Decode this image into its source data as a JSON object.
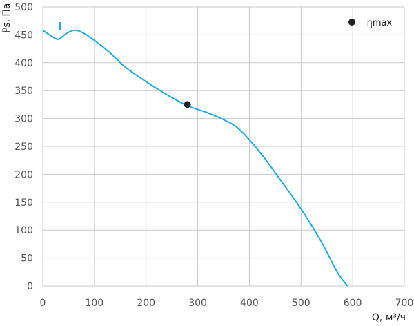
{
  "chart_data": {
    "type": "line",
    "xlabel": "Q, м³/ч",
    "ylabel": "Ps, Па",
    "xlim": [
      0,
      700
    ],
    "ylim": [
      0,
      500
    ],
    "x_ticks": [
      0,
      100,
      200,
      300,
      400,
      500,
      600,
      700
    ],
    "y_ticks": [
      0,
      50,
      100,
      150,
      200,
      250,
      300,
      350,
      400,
      450,
      500
    ],
    "grid": true,
    "legend_placement": "top-right",
    "legend_label": "– ηmax",
    "series": [
      {
        "name": "I",
        "color": "#1aabe3",
        "x": [
          0,
          15,
          30,
          45,
          60,
          75,
          100,
          130,
          160,
          200,
          240,
          280,
          320,
          350,
          380,
          420,
          460,
          500,
          540,
          570,
          590
        ],
        "y": [
          458,
          449,
          442,
          452,
          458,
          455,
          440,
          418,
          392,
          366,
          343,
          323,
          310,
          298,
          281,
          240,
          190,
          138,
          78,
          25,
          0
        ]
      }
    ],
    "markers": [
      {
        "label": "ηmax",
        "x": 280,
        "y": 325,
        "color": "#222222"
      }
    ]
  }
}
